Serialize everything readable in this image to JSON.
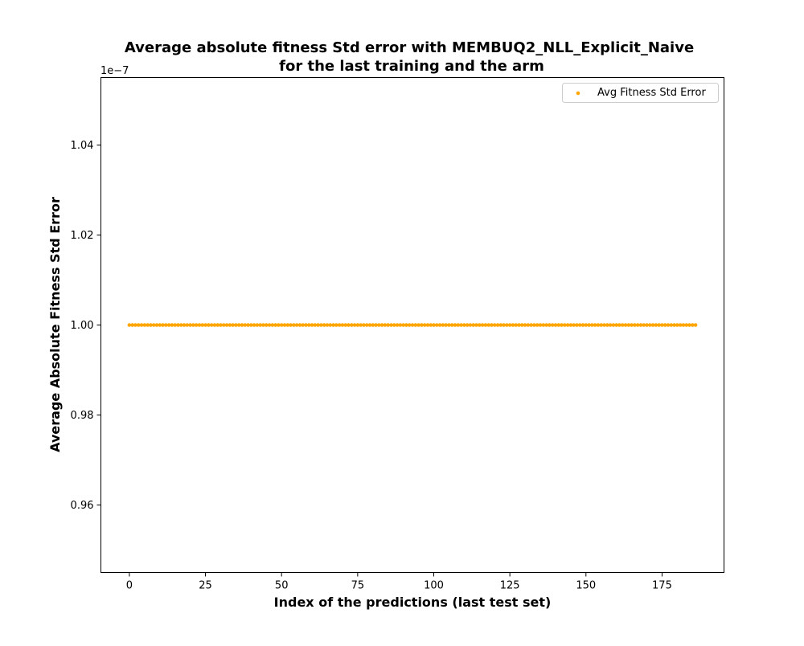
{
  "chart_data": {
    "type": "scatter",
    "title_line1": "Average absolute fitness Std error with MEMBUQ2_NLL_Explicit_Naive",
    "title_line2": "for the last training and the arm",
    "xlabel": "Index of the predictions (last test set)",
    "ylabel": "Average Absolute Fitness Std Error",
    "y_offset_label": "1e−7",
    "xlim": [
      -9.35,
      195.35
    ],
    "ylim": [
      0.945,
      1.055
    ],
    "y_scale_factor": 1e-07,
    "x_ticks": [
      0,
      25,
      50,
      75,
      100,
      125,
      150,
      175
    ],
    "y_ticks": [
      0.96,
      0.98,
      1.0,
      1.02,
      1.04
    ],
    "y_tick_labels": [
      "0.96",
      "0.98",
      "1.00",
      "1.02",
      "1.04"
    ],
    "series": [
      {
        "name": "Avg Fitness Std Error",
        "color": "#ffa500",
        "x_start": 0,
        "x_end": 186,
        "constant_y": 1.0
      }
    ],
    "legend": {
      "placement": "top-right",
      "label": "Avg Fitness Std Error"
    },
    "grid": false
  }
}
